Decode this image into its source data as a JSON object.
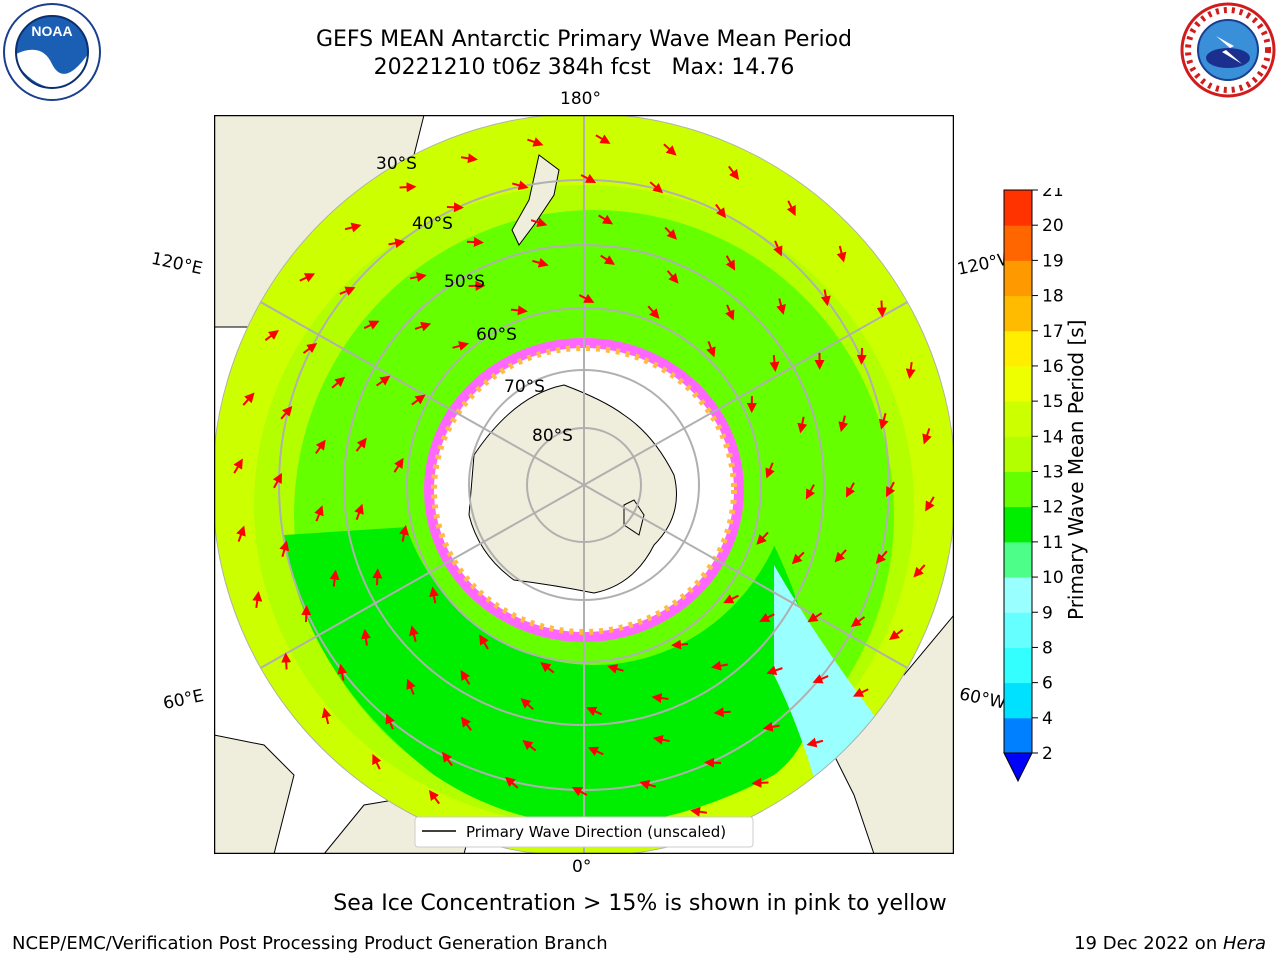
{
  "header": {
    "title_line1": "GEFS MEAN Antarctic Primary Wave Mean Period",
    "title_line2": "20221210 t06z 384h fcst   Max: 14.76",
    "left_logo": "noaa-logo",
    "right_logo": "national-weather-service-logo"
  },
  "map": {
    "projection": "south-polar-stereographic",
    "lon_labels": {
      "top": "180°",
      "bottom": "0°",
      "upper_left": "120°E",
      "upper_right": "120°W",
      "lower_left": "60°E",
      "lower_right": "60°W"
    },
    "lat_labels": [
      "30°S",
      "40°S",
      "50°S",
      "60°S",
      "70°S",
      "80°S"
    ],
    "legend_label": "Primary Wave Direction (unscaled)",
    "colors": {
      "land": "#efeddb",
      "ice_edge": "#ff33ff",
      "arrow": "#ff0000",
      "grid": "#b0b0b0"
    }
  },
  "colorbar": {
    "title": "Primary Wave Mean Period [s]",
    "ticks": [
      "2",
      "4",
      "6",
      "8",
      "9",
      "10",
      "11",
      "12",
      "13",
      "14",
      "15",
      "16",
      "17",
      "18",
      "19",
      "20",
      "21"
    ],
    "colors": [
      "#0080ff",
      "#00e0ff",
      "#33ffff",
      "#66ffff",
      "#99ffff",
      "#4dff88",
      "#00ee00",
      "#66ff00",
      "#b3ff00",
      "#ccff00",
      "#eeff00",
      "#ffee00",
      "#ffbb00",
      "#ff9900",
      "#ff6600",
      "#ff3300"
    ],
    "extend_color": "#0000ff",
    "top_color": "#ff0000"
  },
  "caption": "Sea Ice Concentration > 15% is shown in pink to yellow",
  "footer": {
    "left": "NCEP/EMC/Verification Post Processing Product Generation Branch",
    "date": "19 Dec 2022 on ",
    "machine": "Hera"
  }
}
